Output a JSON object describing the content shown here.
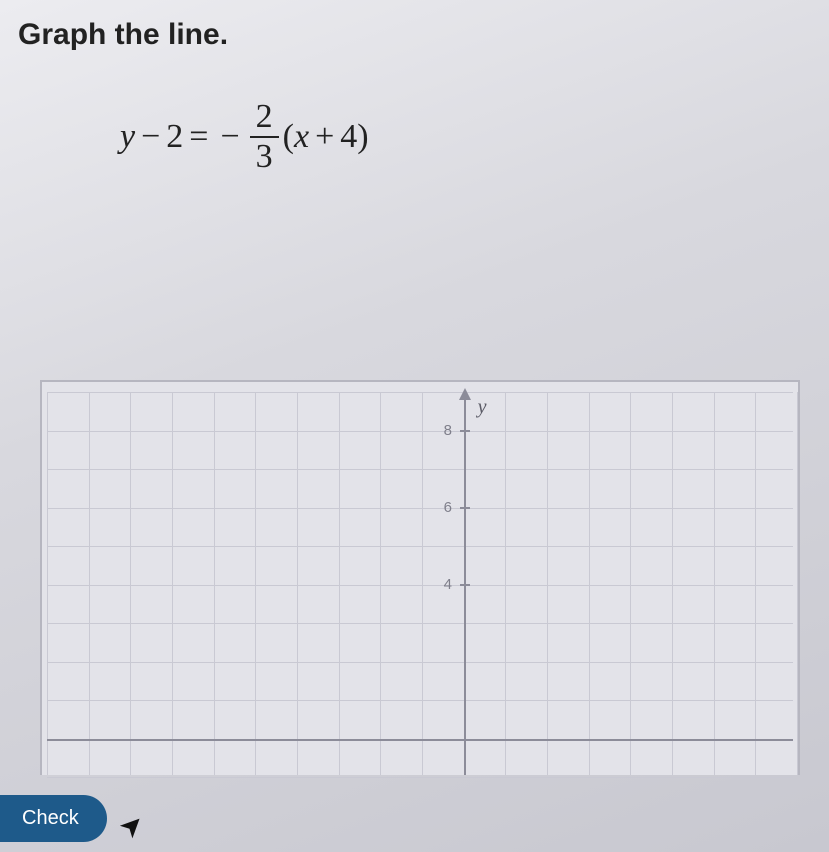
{
  "title": "Graph the line.",
  "equation": {
    "lhs_var": "y",
    "lhs_op": "−",
    "lhs_const": "2",
    "equals": "=",
    "neg": "−",
    "frac_num": "2",
    "frac_den": "3",
    "open_paren": "(",
    "rhs_var": "x",
    "rhs_op": "+",
    "rhs_const": "4",
    "close_paren": ")"
  },
  "graph": {
    "ylabel": "y",
    "xmin": -10,
    "xmax": 8,
    "ymin": -1,
    "ymax": 9,
    "y_axis_at_x": 0,
    "x_axis_at_y": 0,
    "ytick_labels": [
      "8",
      "6",
      "4"
    ],
    "ytick_values": [
      8,
      6,
      4
    ],
    "grid_color": "#c9c9d3",
    "axis_color": "#8c8c99",
    "background_color": "#e3e3e9"
  },
  "check_button": "Check"
}
